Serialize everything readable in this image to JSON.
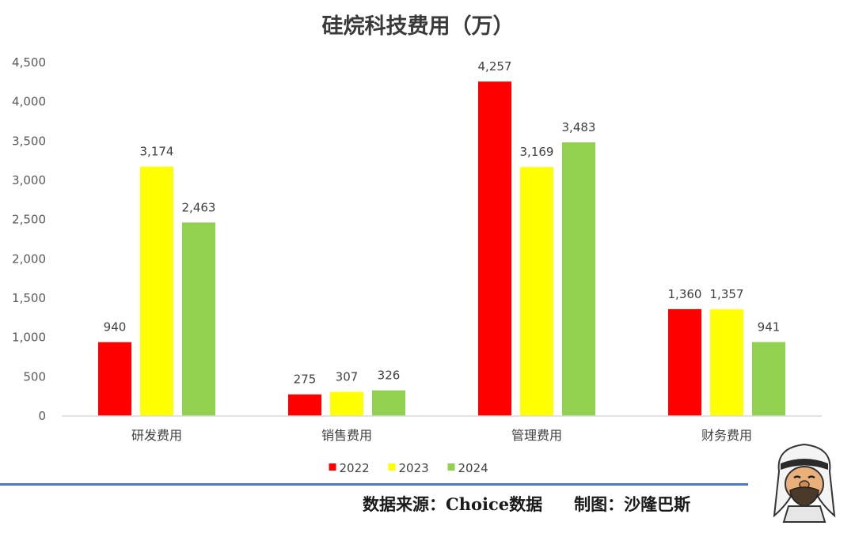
{
  "chart_data": {
    "type": "bar",
    "title": "硅烷科技费用（万）",
    "categories": [
      "研发费用",
      "销售费用",
      "管理费用",
      "财务费用"
    ],
    "series": [
      {
        "name": "2022",
        "color": "#ff0000",
        "values": [
          940,
          275,
          4257,
          1360
        ]
      },
      {
        "name": "2023",
        "color": "#ffff00",
        "values": [
          3174,
          307,
          3169,
          1357
        ]
      },
      {
        "name": "2024",
        "color": "#92d050",
        "values": [
          2463,
          326,
          3483,
          941
        ]
      }
    ],
    "data_labels": [
      [
        "940",
        "275",
        "4,257",
        "1,360"
      ],
      [
        "3,174",
        "307",
        "3,169",
        "1,357"
      ],
      [
        "2,463",
        "326",
        "3,483",
        "941"
      ]
    ],
    "y_ticks": [
      {
        "value": 0,
        "label": "0"
      },
      {
        "value": 500,
        "label": "500"
      },
      {
        "value": 1000,
        "label": "1,000"
      },
      {
        "value": 1500,
        "label": "1,500"
      },
      {
        "value": 2000,
        "label": "2,000"
      },
      {
        "value": 2500,
        "label": "2,500"
      },
      {
        "value": 3000,
        "label": "3,000"
      },
      {
        "value": 3500,
        "label": "3,500"
      },
      {
        "value": 4000,
        "label": "4,000"
      },
      {
        "value": 4500,
        "label": "4,500"
      }
    ],
    "ylim": [
      0,
      4500
    ],
    "grid": false,
    "legend_position": "bottom"
  },
  "footer": {
    "source": "数据来源：Choice数据",
    "author": "制图：沙隆巴斯"
  }
}
